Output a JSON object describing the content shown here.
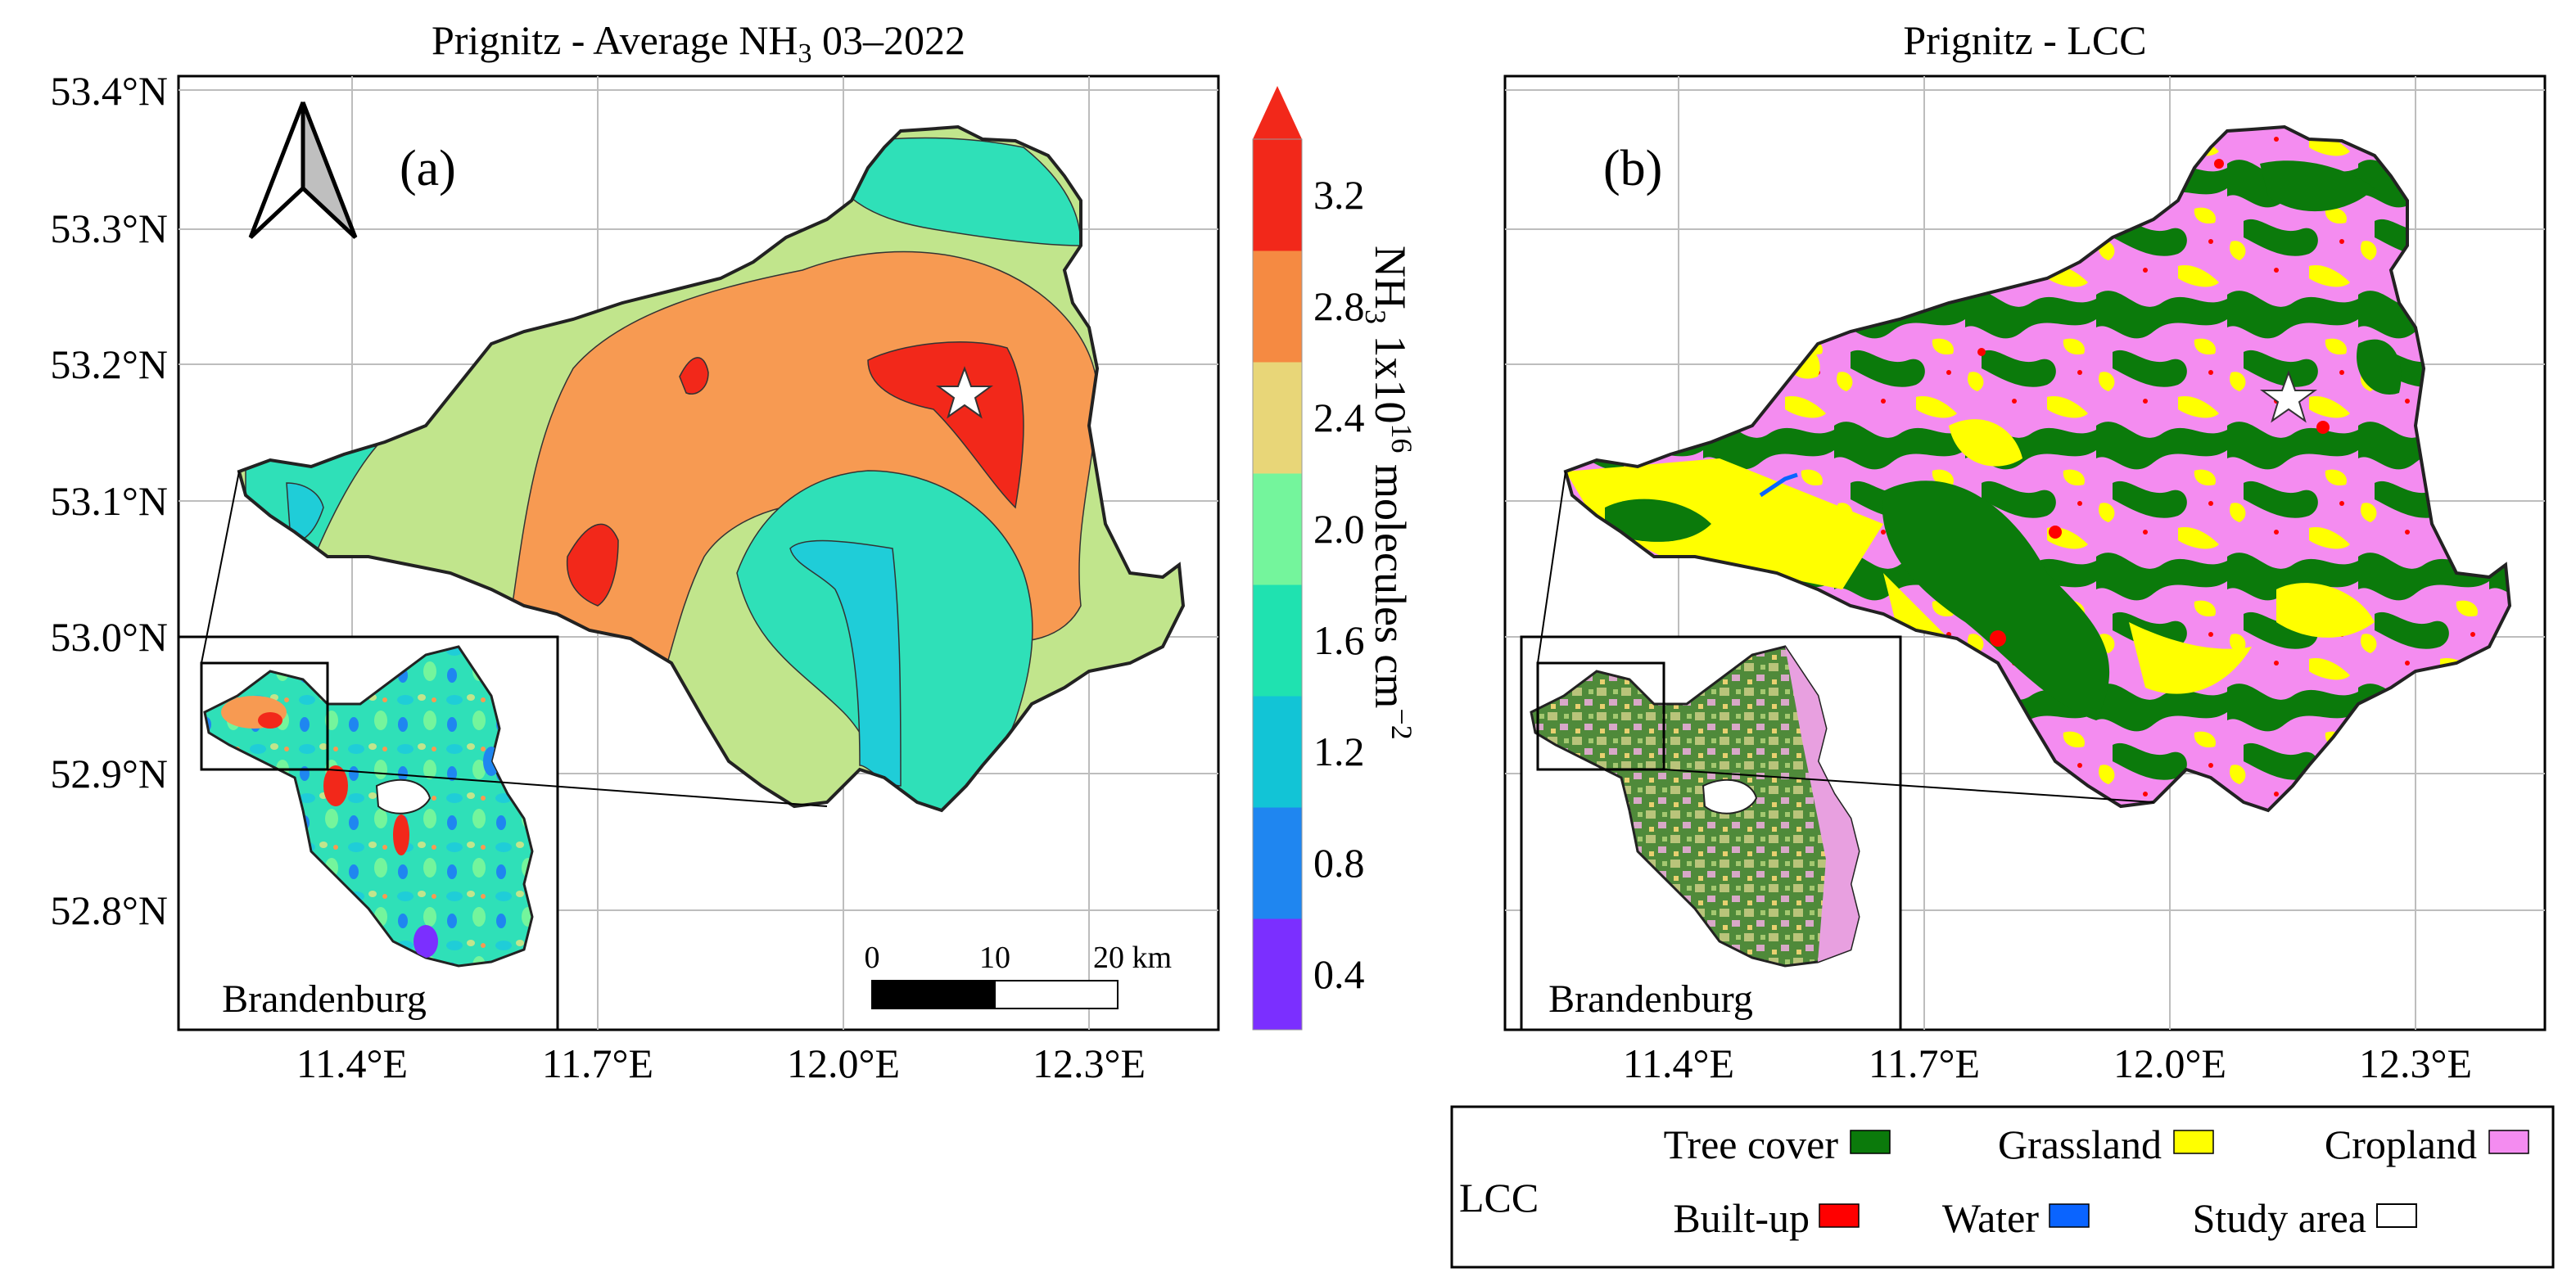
{
  "panel_a": {
    "title_main": "Prignitz - Average NH",
    "title_sub": "3",
    "title_end": " 03–2022",
    "label": "(a)",
    "lat_ticks": [
      "53.4°N",
      "53.3°N",
      "53.2°N",
      "53.1°N",
      "53.0°N",
      "52.9°N",
      "52.8°N"
    ],
    "lon_ticks": [
      "11.4°E",
      "11.7°E",
      "12.0°E",
      "12.3°E"
    ],
    "inset_label": "Brandenburg",
    "scale_labels": [
      "0",
      "10",
      "20 km"
    ]
  },
  "colorbar": {
    "title_a": "NH",
    "title_a_sub": "3",
    "title_b": " 1x10",
    "title_b_sup": "16",
    "title_c": " molecules cm",
    "title_c_sup": "−2",
    "ticks": [
      "3.2",
      "2.8",
      "2.4",
      "2.0",
      "1.6",
      "1.2",
      "0.8",
      "0.4"
    ],
    "colors": [
      "#7b2fff",
      "#1f86f0",
      "#12c4d6",
      "#1fe2b0",
      "#74f59c",
      "#e8d678",
      "#f58a42",
      "#f2281a"
    ],
    "extend_color": "#f2281a"
  },
  "panel_b": {
    "title": "Prignitz - LCC",
    "label": "(b)",
    "lon_ticks": [
      "11.4°E",
      "11.7°E",
      "12.0°E",
      "12.3°E"
    ],
    "inset_label": "Brandenburg"
  },
  "legend": {
    "title": "LCC",
    "items": [
      {
        "label": "Tree cover",
        "color": "#0b7a0b"
      },
      {
        "label": "Grassland",
        "color": "#ffff00"
      },
      {
        "label": "Cropland",
        "color": "#f48cf0"
      },
      {
        "label": "Built-up",
        "color": "#ff0000"
      },
      {
        "label": "Water",
        "color": "#0a64ff"
      },
      {
        "label": "Study area",
        "color": "#ffffff"
      }
    ]
  },
  "colors": {
    "contour_bg": "#c1e58c",
    "contour_orange": "#f79a52",
    "contour_red": "#f2281a",
    "contour_teal": "#2fe0b8",
    "contour_cyan": "#1fcdd8",
    "lcc_crop": "#f48cf0",
    "lcc_tree": "#0b7a0b",
    "lcc_grass": "#ffff00"
  }
}
